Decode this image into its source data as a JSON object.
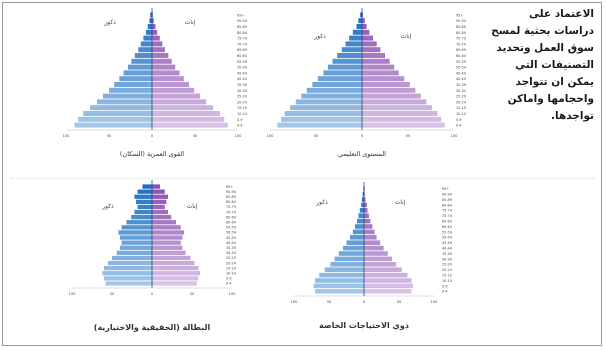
{
  "intro_text": {
    "lines": [
      "الاعتماد على",
      "دراسات بحثية لمسح",
      "سوق العمل وتحديد",
      "التصنيفات التي",
      "يمكن ان تتواجد",
      "واحجامها واماكن",
      "تواجدها."
    ]
  },
  "chart_data": [
    {
      "type": "bar",
      "title": "القوى العمرية (السكان)",
      "legend": {
        "male": "ذكور",
        "female": "إناث"
      },
      "colors": {
        "male": [
          "#1f6fc2",
          "#bcd7f0"
        ],
        "female": [
          "#8a4fae",
          "#e6d6ef"
        ]
      },
      "age_groups": [
        "0-4",
        "5-9",
        "10-14",
        "15-19",
        "20-24",
        "25-29",
        "30-34",
        "35-39",
        "40-44",
        "45-49",
        "50-54",
        "55-59",
        "60-64",
        "65-69",
        "70-74",
        "75-79",
        "80-84",
        "85-89",
        "90-94",
        "95+"
      ],
      "male": [
        90,
        86,
        80,
        72,
        64,
        57,
        50,
        44,
        38,
        33,
        28,
        24,
        20,
        16,
        13,
        10,
        7,
        5,
        3,
        2
      ],
      "female": [
        88,
        84,
        79,
        71,
        63,
        56,
        49,
        43,
        37,
        32,
        27,
        23,
        19,
        15,
        12,
        9,
        6,
        4,
        2,
        1
      ],
      "xlim": [
        -100,
        100
      ]
    },
    {
      "type": "bar",
      "title": "المستوى التعليمي",
      "legend": {
        "male": "ذكور",
        "female": "إناث"
      },
      "colors": {
        "male": [
          "#1f6fc2",
          "#bcd7f0"
        ],
        "female": [
          "#8a4fae",
          "#e6d6ef"
        ]
      },
      "age_groups": [
        "0-4",
        "5-9",
        "10-14",
        "15-19",
        "20-24",
        "25-29",
        "30-34",
        "35-39",
        "40-44",
        "45-49",
        "50-54",
        "55-59",
        "60-64",
        "65-69",
        "70-74",
        "75-79",
        "80-84",
        "85-89",
        "90-94",
        "95+"
      ],
      "male": [
        92,
        88,
        84,
        78,
        72,
        66,
        60,
        54,
        48,
        42,
        37,
        32,
        27,
        22,
        18,
        14,
        10,
        6,
        4,
        2
      ],
      "female": [
        90,
        86,
        82,
        76,
        70,
        64,
        58,
        52,
        46,
        40,
        35,
        30,
        25,
        20,
        16,
        12,
        8,
        5,
        3,
        1
      ],
      "xlim": [
        -100,
        100
      ]
    },
    {
      "type": "bar",
      "title": "البطالة (الحقيقية والاختيارية)",
      "legend": {
        "male": "ذكور",
        "female": "إناث"
      },
      "colors": {
        "male": [
          "#1f6fc2",
          "#bcd7f0"
        ],
        "female": [
          "#8a4fae",
          "#e6d6ef"
        ]
      },
      "age_groups": [
        "0-4",
        "5-9",
        "10-14",
        "15-19",
        "20-24",
        "25-29",
        "30-34",
        "35-39",
        "40-44",
        "45-49",
        "50-54",
        "55-59",
        "60-64",
        "65-69",
        "70-74",
        "75-79",
        "80-84",
        "85-89",
        "90-94",
        "95+"
      ],
      "male": [
        58,
        60,
        62,
        60,
        55,
        50,
        44,
        40,
        38,
        40,
        42,
        38,
        32,
        26,
        22,
        18,
        20,
        22,
        18,
        12
      ],
      "female": [
        56,
        58,
        60,
        58,
        53,
        48,
        42,
        38,
        36,
        38,
        40,
        36,
        30,
        24,
        20,
        16,
        18,
        20,
        16,
        10
      ],
      "xlim": [
        -100,
        100
      ]
    },
    {
      "type": "bar",
      "title": "ذوي الاحتياجات الخاصة",
      "legend": {
        "male": "ذكور",
        "female": "إناث"
      },
      "colors": {
        "male": [
          "#1f6fc2",
          "#bcd7f0"
        ],
        "female": [
          "#8a4fae",
          "#e6d6ef"
        ]
      },
      "age_groups": [
        "0-4",
        "5-9",
        "10-14",
        "15-19",
        "20-24",
        "25-29",
        "30-34",
        "35-39",
        "40-44",
        "45-49",
        "50-54",
        "55-59",
        "60-64",
        "65-69",
        "70-74",
        "75-79",
        "80-84",
        "85-89",
        "90-94",
        "95+"
      ],
      "male": [
        70,
        72,
        70,
        64,
        56,
        48,
        42,
        36,
        30,
        25,
        20,
        16,
        13,
        10,
        8,
        6,
        4,
        3,
        2,
        1
      ],
      "female": [
        68,
        70,
        68,
        62,
        54,
        46,
        40,
        34,
        28,
        23,
        18,
        15,
        12,
        9,
        7,
        5,
        4,
        2,
        1,
        1
      ],
      "xlim": [
        -100,
        100
      ]
    }
  ]
}
